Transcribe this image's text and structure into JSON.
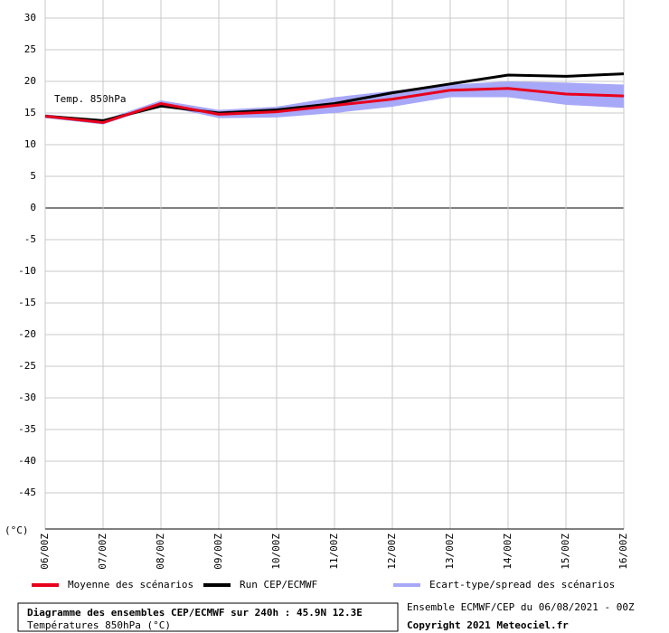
{
  "chart_data": {
    "type": "line",
    "title": "Diagramme des ensembles CEP/ECMWF sur 240h : 45.9N 12.3E",
    "subtitle": "Températures 850hPa (°C)",
    "annotation": "Temp. 850hPa",
    "y_label": "(°C)",
    "source": "Ensemble ECMWF/CEP du 06/08/2021 - 00Z",
    "copyright": "Copyright 2021 Meteociel.fr",
    "categories": [
      "06/00Z",
      "07/00Z",
      "08/00Z",
      "09/00Z",
      "10/00Z",
      "11/00Z",
      "12/00Z",
      "13/00Z",
      "14/00Z",
      "15/00Z",
      "16/00Z"
    ],
    "series": [
      {
        "name": "Moyenne des scénarios",
        "color": "#e8001c",
        "values": [
          14.5,
          13.5,
          16.5,
          14.8,
          15.2,
          16.2,
          17.2,
          18.6,
          18.9,
          18.0,
          17.7
        ]
      },
      {
        "name": "Run CEP/ECMWF",
        "color": "#000000",
        "values": [
          14.5,
          13.8,
          16.1,
          15.0,
          15.5,
          16.5,
          18.2,
          19.6,
          21.0,
          20.8,
          21.2
        ]
      },
      {
        "name": "Ecart-type/spread des scénarios",
        "color": "#a8a8f8",
        "lower": [
          14.2,
          13.2,
          16.2,
          14.2,
          14.3,
          15.0,
          16.0,
          17.5,
          17.5,
          16.3,
          15.8
        ],
        "upper": [
          14.8,
          13.9,
          17.0,
          15.5,
          16.0,
          17.5,
          18.5,
          19.5,
          20.0,
          19.8,
          19.5
        ]
      }
    ],
    "ylim": [
      -50,
      30
    ],
    "yticks": [
      -45,
      -40,
      -35,
      -30,
      -25,
      -20,
      -15,
      -10,
      -5,
      0,
      5,
      10,
      15,
      20,
      25,
      30
    ],
    "grid": true
  }
}
